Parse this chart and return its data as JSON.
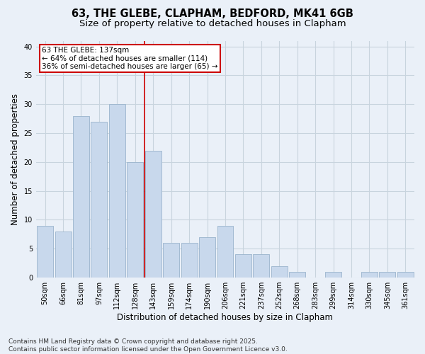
{
  "title1": "63, THE GLEBE, CLAPHAM, BEDFORD, MK41 6GB",
  "title2": "Size of property relative to detached houses in Clapham",
  "xlabel": "Distribution of detached houses by size in Clapham",
  "ylabel": "Number of detached properties",
  "categories": [
    "50sqm",
    "66sqm",
    "81sqm",
    "97sqm",
    "112sqm",
    "128sqm",
    "143sqm",
    "159sqm",
    "174sqm",
    "190sqm",
    "206sqm",
    "221sqm",
    "237sqm",
    "252sqm",
    "268sqm",
    "283sqm",
    "299sqm",
    "314sqm",
    "330sqm",
    "345sqm",
    "361sqm"
  ],
  "values": [
    9,
    8,
    28,
    27,
    30,
    20,
    22,
    6,
    6,
    7,
    9,
    4,
    4,
    2,
    1,
    0,
    1,
    0,
    1,
    1,
    1
  ],
  "bar_color": "#c8d8ec",
  "bar_edge_color": "#9ab4cc",
  "grid_color": "#c8d4de",
  "background_color": "#eaf0f8",
  "vline_x": 5.5,
  "vline_color": "#cc0000",
  "annotation_text": "63 THE GLEBE: 137sqm\n← 64% of detached houses are smaller (114)\n36% of semi-detached houses are larger (65) →",
  "annotation_box_color": "#ffffff",
  "annotation_box_edge": "#cc0000",
  "ylim": [
    0,
    41
  ],
  "yticks": [
    0,
    5,
    10,
    15,
    20,
    25,
    30,
    35,
    40
  ],
  "footer": "Contains HM Land Registry data © Crown copyright and database right 2025.\nContains public sector information licensed under the Open Government Licence v3.0.",
  "title_fontsize": 10.5,
  "subtitle_fontsize": 9.5,
  "axis_label_fontsize": 8.5,
  "tick_fontsize": 7,
  "annotation_fontsize": 7.5,
  "footer_fontsize": 6.5
}
